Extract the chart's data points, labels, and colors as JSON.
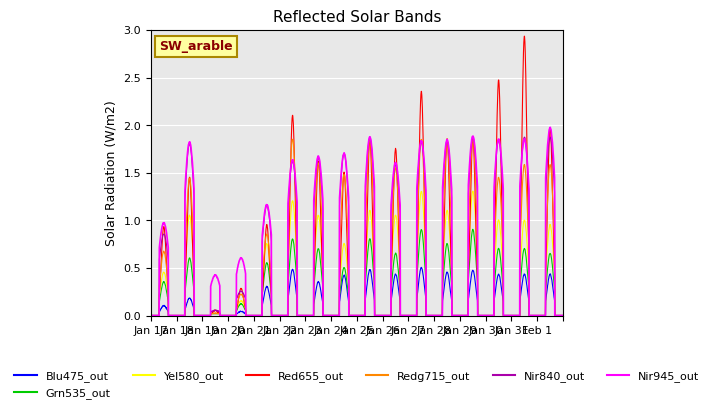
{
  "title": "Reflected Solar Bands",
  "ylabel": "Solar Radiation (W/m2)",
  "annotation": "SW_arable",
  "annotation_color": "#8B0000",
  "annotation_bg": "#FFFFA0",
  "annotation_edge": "#AA8800",
  "ylim": [
    0.0,
    3.0
  ],
  "yticks": [
    0.0,
    0.5,
    1.0,
    1.5,
    2.0,
    2.5,
    3.0
  ],
  "xtick_positions": [
    0,
    1,
    2,
    3,
    4,
    5,
    6,
    7,
    8,
    9,
    10,
    11,
    12,
    13,
    14,
    15,
    16
  ],
  "xtick_labels": [
    "Jan 17",
    "Jan 18",
    "Jan 19",
    "Jan 20",
    "Jan 21",
    "Jan 22",
    "Jan 23",
    "Jan 24",
    "Jan 25",
    "Jan 26",
    "Jan 27",
    "Jan 28",
    "Jan 29",
    "Jan 30",
    "Jan 31",
    "Feb 1",
    ""
  ],
  "n_days": 16,
  "series_order": [
    "Blu475_out",
    "Grn535_out",
    "Yel580_out",
    "Red655_out",
    "Redg715_out",
    "Nir840_out",
    "Nir945_out"
  ],
  "series": {
    "Blu475_out": {
      "color": "#0000FF",
      "lw": 0.8
    },
    "Grn535_out": {
      "color": "#00CC00",
      "lw": 0.8
    },
    "Yel580_out": {
      "color": "#FFFF00",
      "lw": 0.8
    },
    "Red655_out": {
      "color": "#FF0000",
      "lw": 0.8
    },
    "Redg715_out": {
      "color": "#FF8800",
      "lw": 0.8
    },
    "Nir840_out": {
      "color": "#AA00AA",
      "lw": 0.8
    },
    "Nir945_out": {
      "color": "#FF00FF",
      "lw": 1.2
    }
  },
  "red_peaks": [
    0.93,
    1.45,
    0.05,
    0.28,
    0.95,
    2.1,
    1.62,
    1.5,
    1.85,
    1.75,
    2.35,
    1.85,
    1.87,
    2.47,
    2.93,
    1.97
  ],
  "nir840_peaks": [
    0.85,
    1.8,
    0.05,
    0.25,
    1.15,
    1.62,
    1.65,
    1.7,
    1.87,
    1.58,
    1.82,
    1.83,
    1.87,
    1.84,
    1.87,
    1.87
  ],
  "nir945_peaks": [
    0.97,
    1.82,
    0.42,
    0.6,
    1.16,
    1.63,
    1.67,
    1.7,
    1.87,
    1.6,
    1.83,
    1.84,
    1.88,
    1.85,
    1.85,
    1.97
  ],
  "redg715_peaks": [
    0.67,
    1.44,
    0.02,
    0.22,
    0.85,
    1.85,
    1.6,
    1.48,
    1.85,
    1.55,
    1.85,
    1.82,
    1.85,
    1.45,
    1.58,
    1.58
  ],
  "yel580_peaks": [
    0.45,
    1.05,
    0.01,
    0.15,
    0.75,
    1.2,
    1.05,
    0.75,
    1.1,
    1.05,
    1.3,
    1.1,
    1.3,
    1.0,
    1.0,
    0.95
  ],
  "grn535_peaks": [
    0.35,
    0.6,
    0.01,
    0.12,
    0.55,
    0.8,
    0.7,
    0.5,
    0.8,
    0.65,
    0.9,
    0.75,
    0.9,
    0.7,
    0.7,
    0.65
  ],
  "blu475_peaks": [
    0.1,
    0.18,
    0.0,
    0.04,
    0.3,
    0.48,
    0.35,
    0.42,
    0.48,
    0.43,
    0.5,
    0.45,
    0.47,
    0.43,
    0.43,
    0.43
  ],
  "bg_color": "#E8E8E8",
  "grid_color": "#FFFFFF",
  "title_fontsize": 11,
  "axis_fontsize": 9,
  "tick_fontsize": 8
}
